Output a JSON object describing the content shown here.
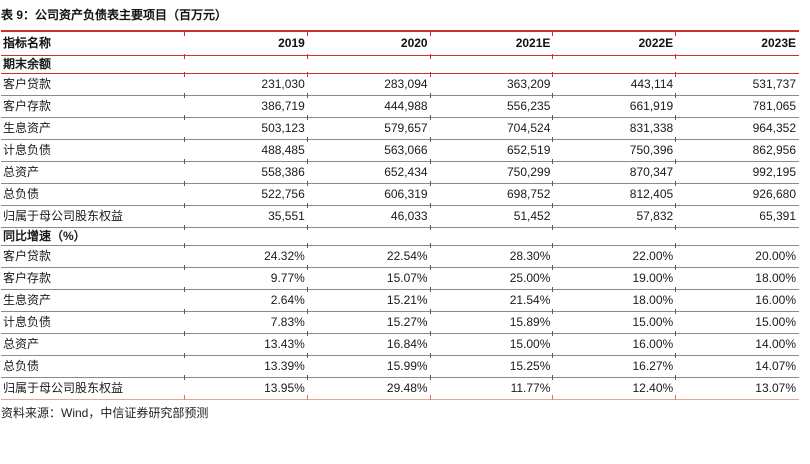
{
  "title": "表 9：公司资产负债表主要项目（百万元）",
  "source_note": "资料来源：Wind，中信证券研究部预测",
  "colors": {
    "accent_red": "#c5352b",
    "bottom_line": "#e8a29a",
    "bottom_tick": "#d4766c",
    "row_line": "#8a8a8a",
    "row_tick": "#5a5a5a"
  },
  "table": {
    "columns": [
      "指标名称",
      "2019",
      "2020",
      "2021E",
      "2022E",
      "2023E"
    ],
    "sections": [
      {
        "header": "期末余额",
        "rows": [
          {
            "label": "客户贷款",
            "values": [
              "231,030",
              "283,094",
              "363,209",
              "443,114",
              "531,737"
            ]
          },
          {
            "label": "客户存款",
            "values": [
              "386,719",
              "444,988",
              "556,235",
              "661,919",
              "781,065"
            ]
          },
          {
            "label": "生息资产",
            "values": [
              "503,123",
              "579,657",
              "704,524",
              "831,338",
              "964,352"
            ]
          },
          {
            "label": "计息负债",
            "values": [
              "488,485",
              "563,066",
              "652,519",
              "750,396",
              "862,956"
            ]
          },
          {
            "label": "总资产",
            "values": [
              "558,386",
              "652,434",
              "750,299",
              "870,347",
              "992,195"
            ]
          },
          {
            "label": "总负债",
            "values": [
              "522,756",
              "606,319",
              "698,752",
              "812,405",
              "926,680"
            ]
          },
          {
            "label": "归属于母公司股东权益",
            "values": [
              "35,551",
              "46,033",
              "51,452",
              "57,832",
              "65,391"
            ]
          }
        ]
      },
      {
        "header": "同比增速（%）",
        "rows": [
          {
            "label": "客户贷款",
            "values": [
              "24.32%",
              "22.54%",
              "28.30%",
              "22.00%",
              "20.00%"
            ]
          },
          {
            "label": "客户存款",
            "values": [
              "9.77%",
              "15.07%",
              "25.00%",
              "19.00%",
              "18.00%"
            ]
          },
          {
            "label": "生息资产",
            "values": [
              "2.64%",
              "15.21%",
              "21.54%",
              "18.00%",
              "16.00%"
            ]
          },
          {
            "label": "计息负债",
            "values": [
              "7.83%",
              "15.27%",
              "15.89%",
              "15.00%",
              "15.00%"
            ]
          },
          {
            "label": "总资产",
            "values": [
              "13.43%",
              "16.84%",
              "15.00%",
              "16.00%",
              "14.00%"
            ]
          },
          {
            "label": "总负债",
            "values": [
              "13.39%",
              "15.99%",
              "15.25%",
              "16.27%",
              "14.07%"
            ]
          },
          {
            "label": "归属于母公司股东权益",
            "values": [
              "13.95%",
              "29.48%",
              "11.77%",
              "12.40%",
              "13.07%"
            ]
          }
        ]
      }
    ]
  }
}
